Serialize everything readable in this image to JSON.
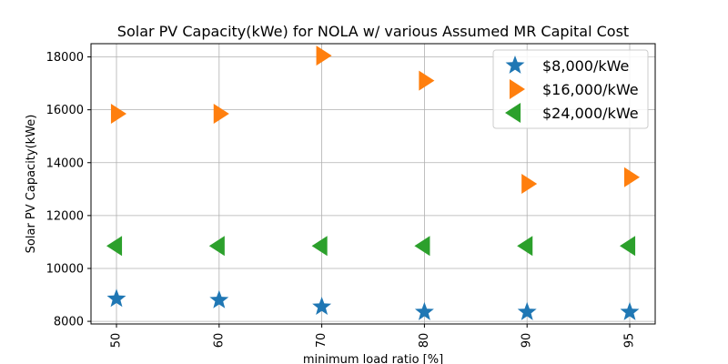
{
  "chart_data": {
    "type": "scatter",
    "title": "Solar PV Capacity(kWe) for NOLA w/ various Assumed MR Capital Cost",
    "xlabel": "minimum load ratio [%]",
    "ylabel": "Solar PV Capacity(kWe)",
    "categories": [
      "50",
      "60",
      "70",
      "80",
      "90",
      "95"
    ],
    "ylim": [
      7900,
      18500
    ],
    "yticks": [
      8000,
      10000,
      12000,
      14000,
      16000,
      18000
    ],
    "grid": true,
    "legend_position": "top-right",
    "series": [
      {
        "name": "$8,000/kWe",
        "marker": "star",
        "color": "#1f77b4",
        "values": [
          8850,
          8800,
          8550,
          8350,
          8350,
          8350
        ]
      },
      {
        "name": "$16,000/kWe",
        "marker": "triangle-right",
        "color": "#ff7f0e",
        "values": [
          15850,
          15850,
          18050,
          17100,
          13200,
          13450
        ]
      },
      {
        "name": "$24,000/kWe",
        "marker": "triangle-left",
        "color": "#2ca02c",
        "values": [
          10850,
          10850,
          10850,
          10850,
          10850,
          10850
        ]
      }
    ]
  }
}
